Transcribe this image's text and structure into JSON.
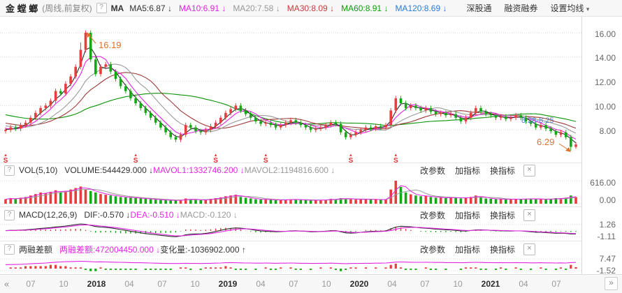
{
  "toolbar": {
    "stock_name": "金 螳 螂",
    "period": "(周线,前复权)",
    "help_icon": "?",
    "ma_label": "MA",
    "ma_items": [
      {
        "label": "MA5:6.87",
        "arrow": "↓",
        "color": "#333333"
      },
      {
        "label": "MA10:6.91",
        "arrow": "↓",
        "color": "#e226e2"
      },
      {
        "label": "MA20:7.58",
        "arrow": "↓",
        "color": "#999999"
      },
      {
        "label": "MA30:8.09",
        "arrow": "↓",
        "color": "#c93a3a"
      },
      {
        "label": "MA60:8.91",
        "arrow": "↓",
        "color": "#0a9e0a"
      },
      {
        "label": "MA120:8.69",
        "arrow": "↓",
        "color": "#2b7bd9"
      }
    ],
    "links": [
      "深股通",
      "融资融券"
    ],
    "ma_settings": "设置均线",
    "caret": "▾"
  },
  "panel_actions": [
    "改参数",
    "加指标",
    "换指标"
  ],
  "close_label": "×",
  "panels": {
    "vol": {
      "help_icon": "?",
      "name": "VOL(5,10)",
      "items": [
        {
          "label": "VOLUME:544429.000",
          "arrow": "↓",
          "color": "#333333"
        },
        {
          "label": "MAVOL1:1332746.200",
          "arrow": "↓",
          "color": "#e226e2"
        },
        {
          "label": "MAVOL2:1194816.600",
          "arrow": "↓",
          "color": "#999999"
        }
      ],
      "axis": [
        "616.00",
        "0.00"
      ]
    },
    "macd": {
      "help_icon": "?",
      "name": "MACD(12,26,9)",
      "items": [
        {
          "label": "DIF:-0.570",
          "arrow": "↓",
          "color": "#333333"
        },
        {
          "label": "DEA:-0.510",
          "arrow": "↓",
          "color": "#e226e2"
        },
        {
          "label": "MACD:-0.120",
          "arrow": "↓",
          "color": "#999999"
        }
      ],
      "axis": [
        "1.26",
        "-1.11"
      ]
    },
    "margin": {
      "help_icon": "?",
      "name": "两融差额",
      "items": [
        {
          "label": "两融差额:472004450.000",
          "arrow": "↓",
          "color": "#e226e2"
        },
        {
          "label": "变化量:-1036902.000",
          "arrow": "↑",
          "color": "#333333"
        }
      ],
      "axis": [
        "7.47",
        "-1.52"
      ]
    }
  },
  "main_axis": [
    "16.00",
    "14.00",
    "12.00",
    "10.00",
    "8.00"
  ],
  "annotations": {
    "peak_label": "16.19",
    "low_label": "6.29",
    "gap_label": "8.28-8.25",
    "event_label": "S"
  },
  "timebar": {
    "prev": "«",
    "next": "»",
    "labels": [
      "07",
      "10",
      "2018",
      "04",
      "07",
      "10",
      "2019",
      "04",
      "07",
      "10",
      "2020",
      "04",
      "07",
      "10",
      "2021",
      "04",
      "07"
    ],
    "year_indices": [
      2,
      6,
      10,
      14
    ]
  },
  "chart_data": {
    "type": "candlestick",
    "title": "金螳螂 周线 前复权",
    "panels": [
      "price+MA",
      "volume",
      "MACD(12,26,9)",
      "两融差额"
    ],
    "x_axis": {
      "labels": [
        "07",
        "10",
        "2018",
        "04",
        "07",
        "10",
        "2019",
        "04",
        "07",
        "10",
        "2020",
        "04",
        "07",
        "10",
        "2021",
        "04",
        "07"
      ],
      "unit": "weekly"
    },
    "price_gridlines": [
      16,
      14,
      12,
      10,
      8
    ],
    "price_range": [
      5.5,
      17.45
    ],
    "vol_range": [
      0,
      616
    ],
    "macd_range": [
      -1.11,
      1.26
    ],
    "margin_range": [
      -1.52,
      7.47
    ],
    "open_first": 7.9,
    "closes": [
      8.0,
      8.2,
      8.1,
      8.4,
      8.6,
      9.0,
      9.4,
      9.8,
      10.0,
      10.4,
      11.2,
      11.0,
      11.8,
      12.4,
      13.2,
      14.6,
      16.0,
      13.8,
      12.6,
      13.2,
      13.4,
      12.8,
      12.2,
      11.6,
      11.2,
      10.6,
      10.2,
      9.8,
      9.4,
      9.0,
      8.6,
      8.2,
      7.8,
      7.4,
      7.2,
      7.6,
      8.4,
      8.2,
      7.9,
      7.8,
      8.0,
      8.3,
      8.6,
      9.0,
      9.4,
      9.7,
      10.0,
      9.6,
      9.3,
      9.0,
      8.7,
      8.5,
      8.6,
      8.4,
      8.2,
      8.4,
      8.6,
      8.8,
      8.6,
      8.4,
      8.2,
      8.0,
      8.1,
      8.2,
      8.4,
      8.6,
      8.5,
      7.8,
      7.4,
      7.6,
      7.8,
      8.0,
      8.2,
      8.1,
      8.3,
      8.2,
      8.4,
      9.6,
      10.6,
      10.2,
      9.8,
      10.0,
      9.8,
      9.6,
      9.8,
      9.5,
      9.3,
      9.4,
      9.2,
      9.3,
      9.0,
      8.7,
      9.0,
      9.4,
      9.8,
      9.5,
      9.3,
      9.2,
      9.0,
      9.1,
      8.9,
      9.0,
      9.2,
      9.0,
      8.7,
      8.5,
      8.2,
      8.4,
      8.1,
      7.9,
      7.6,
      7.8,
      7.4,
      6.6,
      6.8
    ],
    "high_overrides": {
      "16": 16.19,
      "15": 15.2
    },
    "low_overrides": {
      "113": 6.29,
      "114": 6.45
    },
    "volumes": [
      120,
      150,
      130,
      160,
      180,
      220,
      260,
      300,
      280,
      320,
      360,
      300,
      340,
      380,
      420,
      460,
      380,
      340,
      300,
      260,
      240,
      220,
      200,
      180,
      170,
      160,
      150,
      140,
      130,
      120,
      110,
      100,
      95,
      90,
      85,
      100,
      140,
      120,
      100,
      95,
      110,
      130,
      150,
      170,
      200,
      220,
      240,
      180,
      160,
      140,
      120,
      110,
      115,
      105,
      95,
      100,
      110,
      120,
      110,
      100,
      95,
      90,
      95,
      100,
      105,
      130,
      120,
      150,
      140,
      120,
      110,
      115,
      120,
      110,
      115,
      105,
      110,
      380,
      616,
      450,
      300,
      250,
      220,
      200,
      210,
      180,
      160,
      170,
      150,
      160,
      170,
      140,
      160,
      180,
      220,
      170,
      140,
      130,
      120,
      125,
      115,
      120,
      130,
      115,
      130,
      140,
      120,
      125,
      110,
      130,
      150,
      140,
      160,
      220,
      180
    ],
    "dif": [
      0.05,
      0.1,
      0.12,
      0.15,
      0.2,
      0.28,
      0.36,
      0.45,
      0.52,
      0.6,
      0.72,
      0.78,
      0.88,
      1.0,
      1.15,
      1.26,
      1.2,
      1.0,
      0.8,
      0.7,
      0.65,
      0.55,
      0.4,
      0.25,
      0.1,
      -0.05,
      -0.2,
      -0.35,
      -0.5,
      -0.6,
      -0.7,
      -0.8,
      -0.9,
      -1.0,
      -1.05,
      -0.95,
      -0.7,
      -0.6,
      -0.55,
      -0.55,
      -0.45,
      -0.3,
      -0.1,
      0.1,
      0.3,
      0.45,
      0.55,
      0.5,
      0.4,
      0.28,
      0.12,
      0.0,
      -0.05,
      -0.1,
      -0.15,
      -0.12,
      -0.08,
      0.0,
      0.02,
      -0.02,
      -0.08,
      -0.15,
      -0.15,
      -0.1,
      -0.05,
      0.02,
      0.05,
      -0.15,
      -0.35,
      -0.4,
      -0.35,
      -0.25,
      -0.15,
      -0.1,
      -0.05,
      -0.05,
      0.0,
      0.35,
      0.7,
      0.85,
      0.8,
      0.75,
      0.65,
      0.55,
      0.5,
      0.42,
      0.32,
      0.28,
      0.2,
      0.18,
      0.1,
      0.0,
      -0.02,
      0.08,
      0.18,
      0.2,
      0.15,
      0.1,
      0.05,
      0.02,
      0.0,
      -0.02,
      0.0,
      0.0,
      -0.08,
      -0.15,
      -0.25,
      -0.25,
      -0.3,
      -0.35,
      -0.42,
      -0.4,
      -0.45,
      -0.55,
      -0.57
    ],
    "margin_balance": [
      3.0,
      3.1,
      3.2,
      3.3,
      3.5,
      3.7,
      3.9,
      4.1,
      4.3,
      4.6,
      4.9,
      5.1,
      5.3,
      5.4,
      5.5,
      5.6,
      5.5,
      5.3,
      5.1,
      5.2,
      5.1,
      5.0,
      4.9,
      4.8,
      4.7,
      4.6,
      4.5,
      4.5,
      4.4,
      4.3,
      4.2,
      4.1,
      4.0,
      3.9,
      3.9,
      4.0,
      4.1,
      4.0,
      4.0,
      3.9,
      4.0,
      4.1,
      4.2,
      4.3,
      4.5,
      4.6,
      4.5,
      4.4,
      4.3,
      4.3,
      4.2,
      4.2,
      4.3,
      4.2,
      4.1,
      4.2,
      4.2,
      4.3,
      4.2,
      4.1,
      4.1,
      4.0,
      4.0,
      4.1,
      4.1,
      4.2,
      4.1,
      3.9,
      3.8,
      3.9,
      4.0,
      4.0,
      4.1,
      4.1,
      4.2,
      4.2,
      4.3,
      4.6,
      5.0,
      5.1,
      5.0,
      4.9,
      4.8,
      4.8,
      4.9,
      4.8,
      4.7,
      4.7,
      4.6,
      4.6,
      4.6,
      4.5,
      4.6,
      4.7,
      4.8,
      4.7,
      4.6,
      4.6,
      4.5,
      4.6,
      4.5,
      4.5,
      4.6,
      4.5,
      4.5,
      4.4,
      4.4,
      4.5,
      4.4,
      4.4,
      4.3,
      4.4,
      4.3,
      4.6,
      4.72
    ],
    "event_indices": [
      0,
      26,
      42,
      52,
      69,
      78
    ],
    "ma_seed": {
      "from": 12.5,
      "to": 8.0,
      "count": 50
    },
    "ma_lines": [
      {
        "window": 100,
        "color": "#f3a52b"
      },
      {
        "window": 60,
        "color": "#2b7bd9"
      },
      {
        "window": 30,
        "color": "#0c9309"
      },
      {
        "window": 15,
        "color": "#9f3a3a"
      },
      {
        "window": 10,
        "color": "#9a9a9a"
      },
      {
        "window": 5,
        "color": "#e226e2"
      },
      {
        "window": 3,
        "color": "#2b2b2b"
      }
    ],
    "colors": {
      "up": "#e93c3c",
      "down": "#13a913",
      "grid": "#d9d9d9",
      "mavol1": "#e226e2",
      "mavol2": "#9a9a9a",
      "dif_line": "#2b2b2b",
      "dea_line": "#e226e2",
      "margin_line": "#e226e2",
      "annotation": "#e0712d",
      "gap_text": "#4a7bd4",
      "event_marker": "#e03131"
    }
  }
}
